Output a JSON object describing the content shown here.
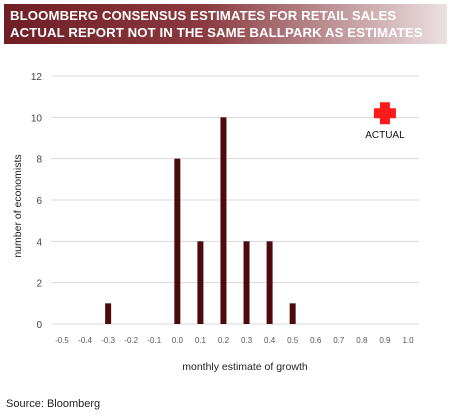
{
  "banner": {
    "title": "BLOOMBERG CONSENSUS ESTIMATES FOR RETAIL SALES",
    "subtitle": "ACTUAL REPORT NOT IN THE SAME BALLPARK AS ESTIMATES"
  },
  "chart_data": {
    "type": "bar",
    "categories": [
      "-0.5",
      "-0.4",
      "-0.3",
      "-0.2",
      "-0.1",
      "0.0",
      "0.1",
      "0.2",
      "0.3",
      "0.4",
      "0.5",
      "0.6",
      "0.7",
      "0.8",
      "0.9",
      "1.0"
    ],
    "values": [
      0,
      0,
      1,
      0,
      0,
      8,
      4,
      10,
      4,
      4,
      1,
      0,
      0,
      0,
      0,
      0
    ],
    "xlabel": "monthly estimate of growth",
    "ylabel": "number of economists",
    "ylim": [
      0,
      12
    ],
    "yticks": [
      0,
      2,
      4,
      6,
      8,
      10,
      12
    ],
    "grid": true,
    "bar_color": "#4d0a0c",
    "annotation": {
      "label": "ACTUAL",
      "x": 0.9,
      "y": 10.2,
      "marker": "cross",
      "color": "#ff1a1a"
    }
  },
  "footer": {
    "source": "Source:  Bloomberg"
  }
}
